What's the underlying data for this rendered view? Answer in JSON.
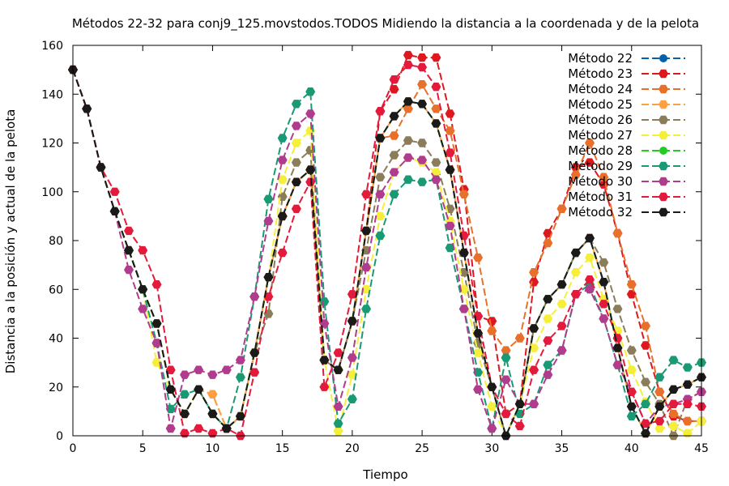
{
  "chart_data": {
    "type": "line",
    "title": "Métodos 22-32 para conj9_125.movstodos.TODOS Midiendo la distancia a la coordenada y de la pelota",
    "xlabel": "Tiempo",
    "ylabel": "Distancia a la posición y actual de la pelota",
    "xlim": [
      0,
      45
    ],
    "ylim": [
      0,
      160
    ],
    "xticks": [
      0,
      5,
      10,
      15,
      20,
      25,
      30,
      35,
      40,
      45
    ],
    "yticks": [
      0,
      20,
      40,
      60,
      80,
      100,
      120,
      140,
      160
    ],
    "grid": false,
    "legend_position": "top-right",
    "x": [
      0,
      1,
      2,
      3,
      4,
      5,
      6,
      7,
      8,
      9,
      10,
      11,
      12,
      13,
      14,
      15,
      16,
      17,
      18,
      19,
      20,
      21,
      22,
      23,
      24,
      25,
      26,
      27,
      28,
      29,
      30,
      31,
      32,
      33,
      34,
      35,
      36,
      37,
      38,
      39,
      40,
      41,
      42,
      43,
      44,
      45
    ],
    "series": [
      {
        "name": "Método 22",
        "color": "#0060ad",
        "marker": "circle",
        "values": [
          150,
          134,
          110,
          92,
          76,
          60,
          46,
          19,
          9,
          19,
          9,
          3,
          8,
          34,
          65,
          90,
          104,
          109,
          31,
          27,
          47,
          84,
          122,
          131,
          137,
          136,
          128,
          109,
          75,
          42,
          20,
          0,
          13,
          44,
          56,
          62,
          75,
          81,
          63,
          36,
          12,
          1,
          12,
          19,
          21,
          24
        ]
      },
      {
        "name": "Método 23",
        "color": "#dd181f",
        "marker": "hexagon",
        "values": [
          150,
          134,
          110,
          92,
          76,
          60,
          46,
          19,
          9,
          19,
          9,
          3,
          8,
          34,
          65,
          90,
          104,
          109,
          31,
          27,
          47,
          84,
          133,
          142,
          156,
          155,
          155,
          132,
          101,
          49,
          47,
          9,
          13,
          63,
          83,
          93,
          110,
          112,
          103,
          83,
          58,
          37,
          18,
          8,
          6,
          6
        ]
      },
      {
        "name": "Método 24",
        "color": "#e8702a",
        "marker": "hexagon",
        "values": [
          150,
          134,
          110,
          92,
          76,
          60,
          46,
          19,
          9,
          19,
          17,
          3,
          8,
          34,
          65,
          90,
          104,
          109,
          31,
          27,
          47,
          84,
          122,
          123,
          134,
          144,
          134,
          125,
          99,
          73,
          43,
          35,
          40,
          67,
          79,
          93,
          107,
          120,
          106,
          83,
          62,
          45,
          18,
          9,
          6,
          6
        ]
      },
      {
        "name": "Método 25",
        "color": "#ffa040",
        "marker": "hexagon",
        "values": [
          150,
          134,
          110,
          92,
          76,
          60,
          46,
          19,
          9,
          19,
          17,
          3,
          8,
          34,
          65,
          90,
          104,
          109,
          31,
          27,
          47,
          84,
          122,
          131,
          137,
          136,
          128,
          109,
          75,
          42,
          20,
          0,
          13,
          44,
          56,
          62,
          75,
          81,
          63,
          36,
          12,
          1,
          12,
          19,
          21,
          24
        ]
      },
      {
        "name": "Método 26",
        "color": "#8b7d5a",
        "marker": "hexagon",
        "values": [
          150,
          134,
          110,
          92,
          76,
          60,
          46,
          19,
          9,
          19,
          9,
          3,
          8,
          34,
          50,
          98,
          112,
          117,
          31,
          27,
          47,
          76,
          106,
          115,
          121,
          120,
          112,
          93,
          67,
          38,
          20,
          0,
          13,
          44,
          56,
          62,
          75,
          81,
          71,
          52,
          35,
          22,
          13,
          0,
          15,
          18
        ]
      },
      {
        "name": "Método 27",
        "color": "#f5ef3a",
        "marker": "hexagon",
        "values": [
          150,
          134,
          110,
          92,
          76,
          60,
          30,
          19,
          9,
          19,
          9,
          3,
          8,
          34,
          65,
          105,
          120,
          125,
          31,
          2,
          25,
          60,
          90,
          108,
          114,
          112,
          108,
          88,
          60,
          34,
          12,
          0,
          13,
          36,
          48,
          54,
          67,
          73,
          56,
          43,
          27,
          14,
          3,
          4,
          1,
          6
        ]
      },
      {
        "name": "Método 28",
        "color": "#22cc22",
        "marker": "circle",
        "values": [
          150,
          134,
          110,
          92,
          76,
          60,
          46,
          19,
          9,
          19,
          9,
          3,
          8,
          34,
          65,
          90,
          104,
          109,
          31,
          27,
          47,
          84,
          122,
          131,
          137,
          136,
          128,
          109,
          75,
          42,
          20,
          0,
          13,
          44,
          56,
          62,
          75,
          81,
          63,
          36,
          12,
          1,
          12,
          19,
          21,
          24
        ]
      },
      {
        "name": "Método 29",
        "color": "#199a74",
        "marker": "hexagon",
        "values": [
          150,
          134,
          110,
          92,
          76,
          60,
          38,
          11,
          17,
          19,
          9,
          3,
          24,
          57,
          97,
          122,
          136,
          141,
          55,
          5,
          15,
          52,
          82,
          99,
          105,
          104,
          105,
          77,
          52,
          26,
          3,
          32,
          9,
          13,
          29,
          35,
          58,
          62,
          48,
          29,
          8,
          13,
          24,
          31,
          28,
          30
        ]
      },
      {
        "name": "Método 30",
        "color": "#b13b8c",
        "marker": "hexagon",
        "values": [
          150,
          134,
          110,
          92,
          68,
          52,
          38,
          3,
          25,
          27,
          25,
          27,
          31,
          57,
          88,
          113,
          127,
          132,
          46,
          12,
          32,
          69,
          99,
          108,
          114,
          113,
          105,
          86,
          52,
          19,
          3,
          23,
          13,
          13,
          25,
          35,
          58,
          60,
          48,
          29,
          18,
          5,
          12,
          13,
          15,
          18
        ]
      },
      {
        "name": "Método 31",
        "color": "#e31a3b",
        "marker": "hexagon",
        "values": [
          150,
          134,
          110,
          100,
          84,
          76,
          62,
          27,
          1,
          3,
          1,
          3,
          0,
          26,
          57,
          75,
          93,
          104,
          20,
          34,
          58,
          99,
          133,
          146,
          152,
          151,
          143,
          116,
          82,
          49,
          20,
          9,
          4,
          27,
          39,
          45,
          58,
          64,
          54,
          40,
          18,
          5,
          6,
          13,
          13,
          12
        ]
      },
      {
        "name": "Método 32",
        "color": "#1a1a1a",
        "marker": "hexagon",
        "values": [
          150,
          134,
          110,
          92,
          76,
          60,
          46,
          19,
          9,
          19,
          9,
          3,
          8,
          34,
          65,
          90,
          104,
          109,
          31,
          27,
          47,
          84,
          122,
          131,
          137,
          136,
          128,
          109,
          75,
          42,
          20,
          0,
          13,
          44,
          56,
          62,
          75,
          81,
          63,
          36,
          12,
          1,
          12,
          19,
          21,
          24
        ]
      }
    ]
  }
}
